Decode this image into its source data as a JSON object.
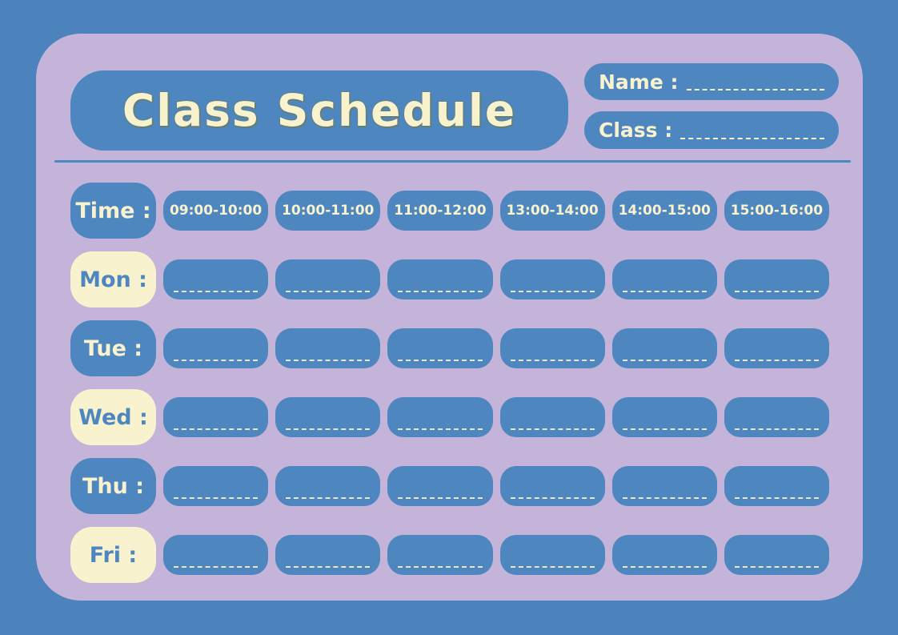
{
  "header": {
    "title": "Class Schedule",
    "name_label": "Name :",
    "class_label": "Class :"
  },
  "schedule": {
    "time_label": "Time :",
    "time_slots": [
      "09:00-10:00",
      "10:00-11:00",
      "11:00-12:00",
      "13:00-14:00",
      "14:00-15:00",
      "15:00-16:00"
    ],
    "days": [
      {
        "label": "Mon :",
        "style": "cream"
      },
      {
        "label": "Tue :",
        "style": "blue"
      },
      {
        "label": "Wed :",
        "style": "cream"
      },
      {
        "label": "Thu :",
        "style": "blue"
      },
      {
        "label": "Fri :",
        "style": "cream"
      }
    ]
  },
  "colors": {
    "page_blue": "#4D83BC",
    "box_blue": "#4E86BF",
    "card_purple": "#C5B4DA",
    "cream": "#F8F2CF",
    "title_shadow": "#6F7B55"
  }
}
